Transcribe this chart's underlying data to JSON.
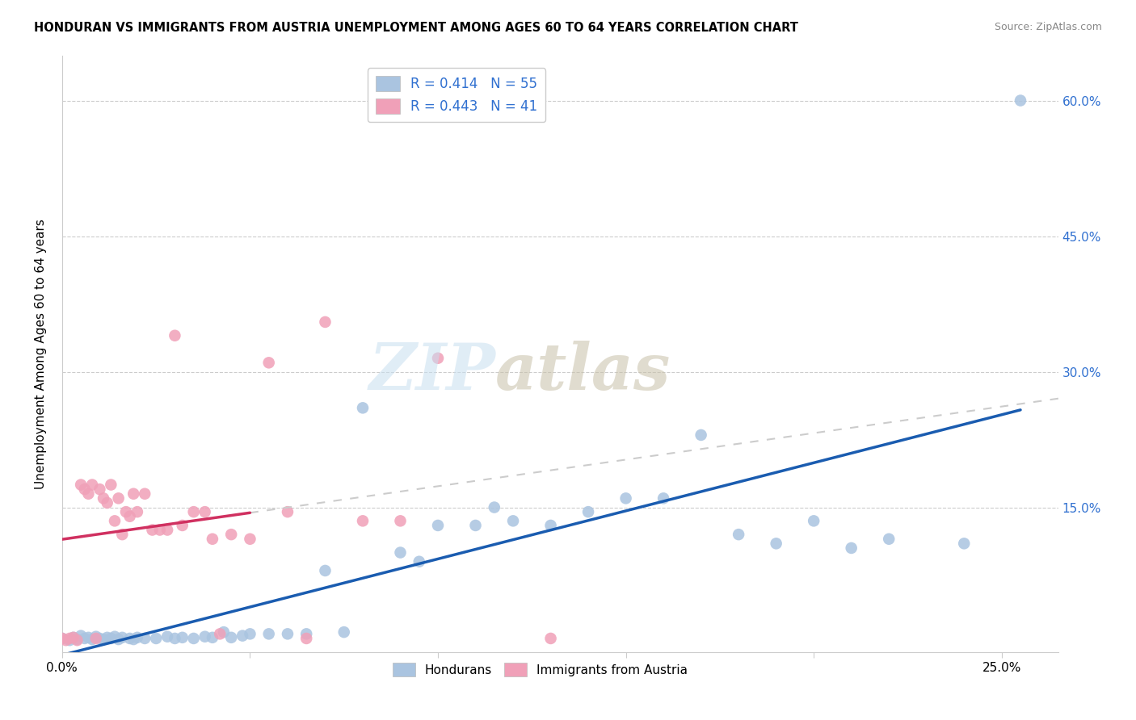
{
  "title": "HONDURAN VS IMMIGRANTS FROM AUSTRIA UNEMPLOYMENT AMONG AGES 60 TO 64 YEARS CORRELATION CHART",
  "source": "Source: ZipAtlas.com",
  "ylabel": "Unemployment Among Ages 60 to 64 years",
  "xlim": [
    0.0,
    0.265
  ],
  "ylim": [
    -0.01,
    0.65
  ],
  "honduran_R": "0.414",
  "honduran_N": "55",
  "austria_R": "0.443",
  "austria_N": "41",
  "honduran_color": "#aac4e0",
  "austria_color": "#f0a0b8",
  "honduran_line_color": "#1a5cb0",
  "austria_line_color": "#d03060",
  "honduran_x": [
    0.0,
    0.002,
    0.003,
    0.004,
    0.005,
    0.006,
    0.007,
    0.008,
    0.009,
    0.01,
    0.011,
    0.012,
    0.013,
    0.014,
    0.015,
    0.016,
    0.018,
    0.019,
    0.02,
    0.022,
    0.025,
    0.028,
    0.03,
    0.032,
    0.035,
    0.038,
    0.04,
    0.043,
    0.045,
    0.048,
    0.05,
    0.055,
    0.06,
    0.065,
    0.07,
    0.075,
    0.08,
    0.09,
    0.095,
    0.1,
    0.11,
    0.115,
    0.12,
    0.13,
    0.14,
    0.15,
    0.16,
    0.17,
    0.18,
    0.19,
    0.2,
    0.21,
    0.22,
    0.24,
    0.255
  ],
  "honduran_y": [
    0.005,
    0.003,
    0.006,
    0.004,
    0.008,
    0.005,
    0.006,
    0.004,
    0.007,
    0.005,
    0.004,
    0.006,
    0.005,
    0.007,
    0.004,
    0.006,
    0.005,
    0.004,
    0.006,
    0.005,
    0.005,
    0.007,
    0.005,
    0.006,
    0.005,
    0.007,
    0.006,
    0.012,
    0.006,
    0.008,
    0.01,
    0.01,
    0.01,
    0.01,
    0.08,
    0.012,
    0.26,
    0.1,
    0.09,
    0.13,
    0.13,
    0.15,
    0.135,
    0.13,
    0.145,
    0.16,
    0.16,
    0.23,
    0.12,
    0.11,
    0.135,
    0.105,
    0.115,
    0.11,
    0.6
  ],
  "austria_x": [
    0.0,
    0.001,
    0.002,
    0.003,
    0.004,
    0.005,
    0.006,
    0.007,
    0.008,
    0.009,
    0.01,
    0.011,
    0.012,
    0.013,
    0.014,
    0.015,
    0.016,
    0.017,
    0.018,
    0.019,
    0.02,
    0.022,
    0.024,
    0.026,
    0.028,
    0.03,
    0.032,
    0.035,
    0.038,
    0.04,
    0.042,
    0.045,
    0.05,
    0.055,
    0.06,
    0.065,
    0.07,
    0.08,
    0.09,
    0.1,
    0.13
  ],
  "austria_y": [
    0.005,
    0.003,
    0.005,
    0.006,
    0.003,
    0.175,
    0.17,
    0.165,
    0.175,
    0.005,
    0.17,
    0.16,
    0.155,
    0.175,
    0.135,
    0.16,
    0.12,
    0.145,
    0.14,
    0.165,
    0.145,
    0.165,
    0.125,
    0.125,
    0.125,
    0.34,
    0.13,
    0.145,
    0.145,
    0.115,
    0.01,
    0.12,
    0.115,
    0.31,
    0.145,
    0.005,
    0.355,
    0.135,
    0.135,
    0.315,
    0.005
  ]
}
